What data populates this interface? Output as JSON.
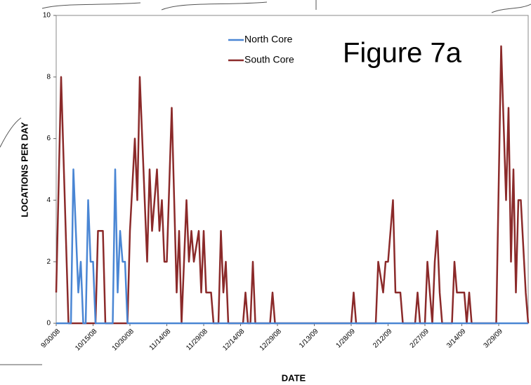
{
  "chart_data": {
    "type": "line",
    "annotation": "Figure 7a",
    "x_label": "DATE",
    "y_label": "LOCATIONS PER DAY",
    "xlim": [
      "9/30/08",
      "4/10/09"
    ],
    "xticks": [
      "9/30/08",
      "10/15/08",
      "10/30/08",
      "11/14/08",
      "11/29/08",
      "12/14/08",
      "12/29/08",
      "1/13/09",
      "1/28/09",
      "2/12/09",
      "2/27/09",
      "3/14/09",
      "3/29/09"
    ],
    "ylim": [
      0,
      10
    ],
    "yticks": [
      0,
      2,
      4,
      6,
      8,
      10
    ],
    "grid": false,
    "legend": "top",
    "series": [
      {
        "name": "North Core",
        "color": "#4a86d4",
        "x": [
          "9/30/08",
          "10/6/08",
          "10/7/08",
          "10/9/08",
          "10/10/08",
          "10/11/08",
          "10/12/08",
          "10/13/08",
          "10/14/08",
          "10/15/08",
          "10/16/08",
          "10/23/08",
          "10/24/08",
          "10/25/08",
          "10/26/08",
          "10/27/08",
          "10/28/08",
          "10/29/08",
          "4/10/09"
        ],
        "values": [
          0,
          0,
          5,
          1,
          2,
          0,
          0,
          4,
          2,
          2,
          0,
          0,
          5,
          1,
          3,
          2,
          2,
          0,
          0
        ]
      },
      {
        "name": "South Core",
        "color": "#8b2a2a",
        "x": [
          "9/30/08",
          "10/2/08",
          "10/5/08",
          "10/16/08",
          "10/17/08",
          "10/19/08",
          "10/20/08",
          "10/29/08",
          "10/30/08",
          "11/1/08",
          "11/2/08",
          "11/3/08",
          "11/5/08",
          "11/6/08",
          "11/7/08",
          "11/8/08",
          "11/10/08",
          "11/11/08",
          "11/12/08",
          "11/13/08",
          "11/14/08",
          "11/16/08",
          "11/18/08",
          "11/19/08",
          "11/20/08",
          "11/22/08",
          "11/23/08",
          "11/24/08",
          "11/25/08",
          "11/27/08",
          "11/28/08",
          "11/29/08",
          "11/30/08",
          "12/2/08",
          "12/3/08",
          "12/5/08",
          "12/6/08",
          "12/7/08",
          "12/8/08",
          "12/9/08",
          "12/15/08",
          "12/16/08",
          "12/17/08",
          "12/18/08",
          "12/19/08",
          "12/20/08",
          "12/26/08",
          "12/27/08",
          "12/28/08",
          "1/28/09",
          "1/29/09",
          "1/30/09",
          "2/7/09",
          "2/8/09",
          "2/10/09",
          "2/11/09",
          "2/12/09",
          "2/14/09",
          "2/15/09",
          "2/17/09",
          "2/18/09",
          "2/23/09",
          "2/24/09",
          "2/25/09",
          "2/27/09",
          "2/28/09",
          "3/2/09",
          "3/3/09",
          "3/4/09",
          "3/5/09",
          "3/6/09",
          "3/10/09",
          "3/11/09",
          "3/12/09",
          "3/15/09",
          "3/16/09",
          "3/17/09",
          "3/18/09",
          "3/28/09",
          "3/30/09",
          "4/1/09",
          "4/2/09",
          "4/3/09",
          "4/4/09",
          "4/5/09",
          "4/6/09",
          "4/7/09",
          "4/9/09",
          "4/10/09"
        ],
        "values": [
          1,
          8,
          0,
          0,
          3,
          3,
          0,
          0,
          3,
          6,
          4,
          8,
          4,
          2,
          5,
          3,
          5,
          3,
          4,
          2,
          2,
          7,
          1,
          3,
          0,
          4,
          2,
          3,
          2,
          3,
          1,
          3,
          1,
          1,
          0,
          0,
          3,
          1,
          2,
          0,
          0,
          1,
          0,
          0,
          2,
          0,
          0,
          1,
          0,
          0,
          1,
          0,
          0,
          2,
          1,
          2,
          2,
          4,
          1,
          1,
          0,
          0,
          1,
          0,
          0,
          2,
          0,
          2,
          3,
          1,
          0,
          0,
          2,
          1,
          1,
          0,
          1,
          0,
          0,
          9,
          4,
          7,
          2,
          5,
          1,
          4,
          4,
          1,
          0
        ]
      }
    ]
  }
}
